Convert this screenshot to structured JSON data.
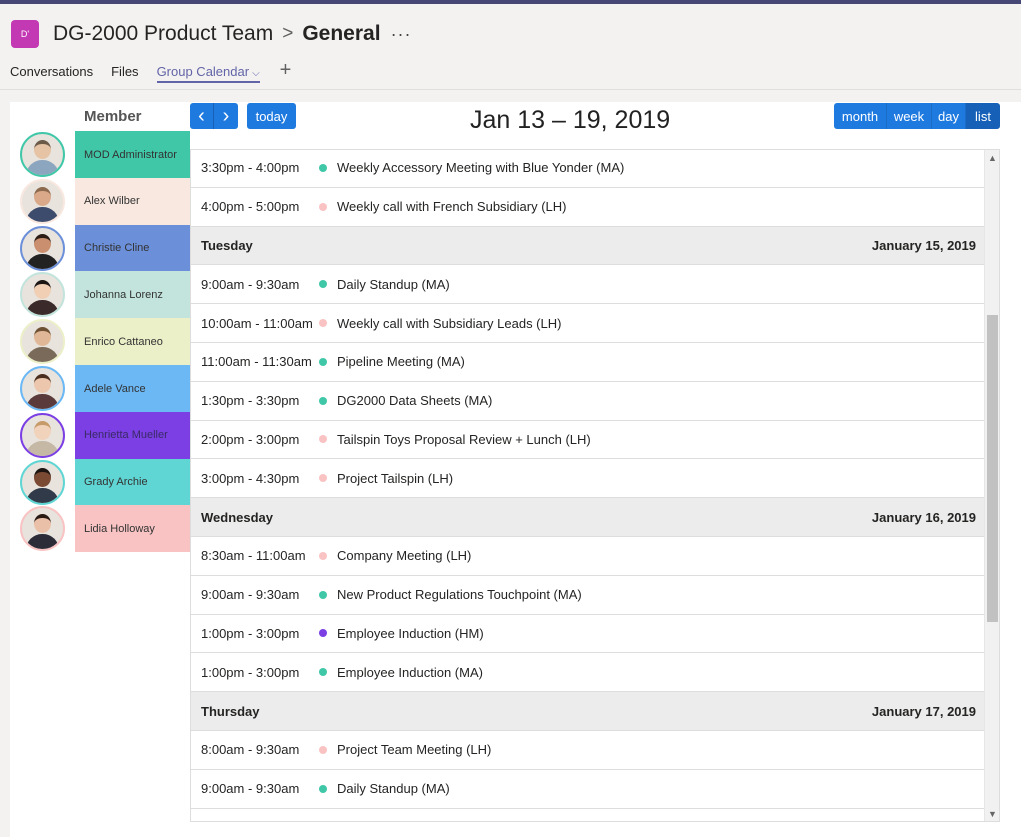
{
  "header": {
    "team_avatar_text": "D'",
    "team_name": "DG-2000 Product Team",
    "separator": ">",
    "channel_name": "General",
    "more": "···"
  },
  "tabs": [
    {
      "label": "Conversations"
    },
    {
      "label": "Files"
    },
    {
      "label": "Group Calendar",
      "active": true
    }
  ],
  "tab_add": "+",
  "members": {
    "heading": "Member",
    "items": [
      {
        "name": "MOD Administrator",
        "color": "#40c7a8"
      },
      {
        "name": "Alex Wilber",
        "color": "#f8e8e0"
      },
      {
        "name": "Christie Cline",
        "color": "#6b8fd9"
      },
      {
        "name": "Johanna Lorenz",
        "color": "#c2e4dc"
      },
      {
        "name": "Enrico Cattaneo",
        "color": "#ecf0c8"
      },
      {
        "name": "Adele Vance",
        "color": "#6bb8f5"
      },
      {
        "name": "Henrietta Mueller",
        "color": "#7b3fe4"
      },
      {
        "name": "Grady Archie",
        "color": "#5fd6d4"
      },
      {
        "name": "Lidia Holloway",
        "color": "#f9c3c3"
      }
    ]
  },
  "toolbar": {
    "prev": "‹",
    "next": "›",
    "today": "today",
    "range_title": "Jan 13 – 19, 2019",
    "views": [
      "month",
      "week",
      "day",
      "list"
    ],
    "active_view": "list"
  },
  "list": [
    {
      "type": "event",
      "time": "3:30pm - 4:00pm",
      "title": "Weekly Accessory Meeting with Blue Yonder (MA)",
      "color": "#40c7a8"
    },
    {
      "type": "event",
      "time": "4:00pm - 5:00pm",
      "title": "Weekly call with French Subsidiary (LH)",
      "color": "#f9c3c3"
    },
    {
      "type": "day",
      "day": "Tuesday",
      "date": "January 15, 2019"
    },
    {
      "type": "event",
      "time": "9:00am - 9:30am",
      "title": "Daily Standup (MA)",
      "color": "#40c7a8"
    },
    {
      "type": "event",
      "time": "10:00am - 11:00am",
      "title": "Weekly call with Subsidiary Leads (LH)",
      "color": "#f9c3c3"
    },
    {
      "type": "event",
      "time": "11:00am - 11:30am",
      "title": "Pipeline Meeting (MA)",
      "color": "#40c7a8"
    },
    {
      "type": "event",
      "time": "1:30pm - 3:30pm",
      "title": "DG2000 Data Sheets (MA)",
      "color": "#40c7a8"
    },
    {
      "type": "event",
      "time": "2:00pm - 3:00pm",
      "title": "Tailspin Toys Proposal Review + Lunch (LH)",
      "color": "#f9c3c3"
    },
    {
      "type": "event",
      "time": "3:00pm - 4:30pm",
      "title": "Project Tailspin (LH)",
      "color": "#f9c3c3"
    },
    {
      "type": "day",
      "day": "Wednesday",
      "date": "January 16, 2019"
    },
    {
      "type": "event",
      "time": "8:30am - 11:00am",
      "title": "Company Meeting (LH)",
      "color": "#f9c3c3"
    },
    {
      "type": "event",
      "time": "9:00am - 9:30am",
      "title": "New Product Regulations Touchpoint (MA)",
      "color": "#40c7a8"
    },
    {
      "type": "event",
      "time": "1:00pm - 3:00pm",
      "title": "Employee Induction (HM)",
      "color": "#7b3fe4"
    },
    {
      "type": "event",
      "time": "1:00pm - 3:00pm",
      "title": "Employee Induction (MA)",
      "color": "#40c7a8"
    },
    {
      "type": "day",
      "day": "Thursday",
      "date": "January 17, 2019"
    },
    {
      "type": "event",
      "time": "8:00am - 9:30am",
      "title": "Project Team Meeting (LH)",
      "color": "#f9c3c3"
    },
    {
      "type": "event",
      "time": "9:00am - 9:30am",
      "title": "Daily Standup (MA)",
      "color": "#40c7a8"
    }
  ],
  "scroll_position": 0.45
}
